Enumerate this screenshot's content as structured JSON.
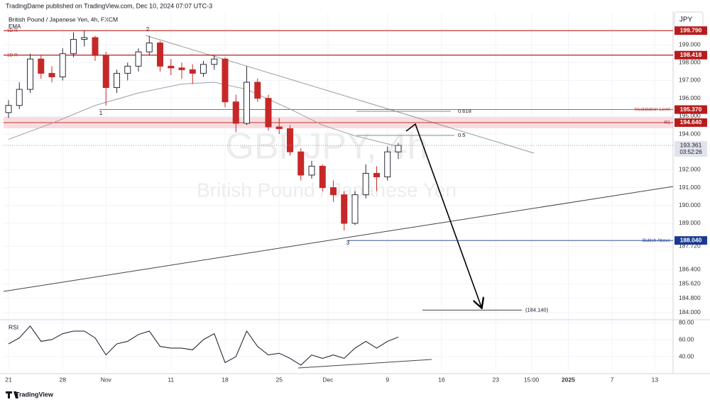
{
  "header": {
    "published": "TradingDame published on TradingView.com, Dec 10, 2024 07:07 UTC-3",
    "symbol": "British Pound / Japanese Yen, 4h, FXCM",
    "currency": "JPY",
    "footer": "TradingView"
  },
  "watermark": {
    "ticker": "GBPJPY, 4h",
    "name": "British Pound / Japanese Yen"
  },
  "annotations": {
    "pivots": [
      "1",
      "2",
      "3"
    ],
    "fib": [
      0.618,
      0.5
    ],
    "target": {
      "value": 184.14,
      "label": "(184.140)"
    }
  },
  "chart_data": [
    {
      "type": "candlestick",
      "up_color": "#2a2e39",
      "down_color": "#c62828",
      "grid": true,
      "x": [
        0,
        1,
        2,
        3,
        4,
        5,
        6,
        7,
        8,
        9,
        10,
        11,
        12,
        13,
        14,
        15,
        16,
        17,
        18,
        19,
        20,
        21,
        22,
        23,
        24,
        25,
        26,
        27,
        28,
        29,
        30,
        31,
        32,
        33,
        34,
        35,
        36
      ],
      "open": [
        195.2,
        195.6,
        196.5,
        198.2,
        197.4,
        197.2,
        198.5,
        199.3,
        199.4,
        198.4,
        196.6,
        197.4,
        197.8,
        198.6,
        199.1,
        197.8,
        197.7,
        197.6,
        197.4,
        197.9,
        198.2,
        195.8,
        194.6,
        196.9,
        196.0,
        194.4,
        194.3,
        193.0,
        191.7,
        192.2,
        191.0,
        190.6,
        189.0,
        190.6,
        191.8,
        191.6,
        193.0
      ],
      "high": [
        195.9,
        196.9,
        198.5,
        198.4,
        197.8,
        198.8,
        199.7,
        199.8,
        199.5,
        198.6,
        197.6,
        198.0,
        198.8,
        199.5,
        199.2,
        198.2,
        198.0,
        197.9,
        198.1,
        198.4,
        198.3,
        196.2,
        197.8,
        197.1,
        196.2,
        194.9,
        194.5,
        193.2,
        192.5,
        192.3,
        191.4,
        190.8,
        190.8,
        192.3,
        192.2,
        193.3,
        193.5
      ],
      "low": [
        194.9,
        195.4,
        196.3,
        197.1,
        196.9,
        197.0,
        198.3,
        198.9,
        198.1,
        195.6,
        196.3,
        197.0,
        197.5,
        198.4,
        197.5,
        197.3,
        197.1,
        196.8,
        197.2,
        197.6,
        195.5,
        194.1,
        194.5,
        195.8,
        194.2,
        194.0,
        192.8,
        191.4,
        191.5,
        190.8,
        190.2,
        188.6,
        188.9,
        190.4,
        190.8,
        191.4,
        192.6
      ],
      "close": [
        195.6,
        196.5,
        198.2,
        197.4,
        197.2,
        198.5,
        199.3,
        199.4,
        198.4,
        196.6,
        197.4,
        197.8,
        198.6,
        199.1,
        197.8,
        197.7,
        197.6,
        197.4,
        197.9,
        198.2,
        195.8,
        194.6,
        196.9,
        196.0,
        194.4,
        194.3,
        193.0,
        191.7,
        192.2,
        191.0,
        190.6,
        189.0,
        190.6,
        191.8,
        191.6,
        193.0,
        193.361
      ],
      "series": [
        {
          "name": "EMA",
          "color": "#9e9e9e",
          "x": [
            0,
            4,
            8,
            12,
            16,
            19,
            22,
            26,
            29,
            32,
            36
          ],
          "values": [
            193.7,
            194.6,
            195.6,
            196.3,
            196.8,
            196.9,
            196.5,
            195.4,
            194.5,
            193.9,
            193.3
          ]
        }
      ],
      "xlim": [
        -0.46,
        61.38
      ],
      "xticks": [
        {
          "value": 0,
          "label": "21"
        },
        {
          "value": 5,
          "label": "28"
        },
        {
          "value": 9,
          "label": "Nov"
        },
        {
          "value": 15,
          "label": "11"
        },
        {
          "value": 20,
          "label": "18"
        },
        {
          "value": 25,
          "label": "25"
        },
        {
          "value": 29.5,
          "label": "Dec"
        },
        {
          "value": 35,
          "label": "9"
        },
        {
          "value": 40,
          "label": "16"
        },
        {
          "value": 45,
          "label": "23"
        },
        {
          "value": 48.3,
          "label": "15:00"
        },
        {
          "value": 51.7,
          "label": "2025"
        },
        {
          "value": 55.75,
          "label": "7"
        },
        {
          "value": 59.7,
          "label": "13"
        }
      ],
      "ylim": [
        183.64,
        200.79
      ],
      "yticks": [
        {
          "value": 199,
          "label": "199.000"
        },
        {
          "value": 198,
          "label": "198.000"
        },
        {
          "value": 197,
          "label": "197.000"
        },
        {
          "value": 196,
          "label": "196.000"
        },
        {
          "value": 195,
          "label": "195.000"
        },
        {
          "value": 194,
          "label": "194.000"
        },
        {
          "value": 192,
          "label": "192.000"
        },
        {
          "value": 191,
          "label": "191.000"
        },
        {
          "value": 190,
          "label": "190.000"
        },
        {
          "value": 189,
          "label": "189.000"
        },
        {
          "value": 187.72,
          "label": "187.720"
        },
        {
          "value": 186.4,
          "label": "186.400"
        },
        {
          "value": 185.62,
          "label": "185.620"
        },
        {
          "value": 184.8,
          "label": "184.800"
        },
        {
          "value": 184,
          "label": "184.000"
        }
      ],
      "levels": [
        {
          "value": 199.79,
          "label": "199.790",
          "tag": "1D R",
          "color": "#b71c1c"
        },
        {
          "value": 198.418,
          "label": "198.418",
          "tag": "1D R",
          "color": "#b71c1c"
        },
        {
          "value": 195.37,
          "label": "195.370",
          "tag": "Invalidation Level",
          "color": "#b71c1c"
        },
        {
          "value": 194.64,
          "label": "194.640",
          "tag": "R1",
          "color": "#b71c1c"
        },
        {
          "value": 188.04,
          "label": "188.040",
          "tag": "Bullish Above",
          "color": "#1a3a8f"
        }
      ],
      "last": {
        "value": 193.361,
        "label": "193.361",
        "countdown": "03:52:26"
      }
    },
    {
      "type": "line",
      "title": "RSI",
      "color": "#131722",
      "x": [
        0,
        1,
        2,
        3,
        4,
        5,
        6,
        7,
        8,
        9,
        10,
        11,
        12,
        13,
        14,
        15,
        16,
        17,
        18,
        19,
        20,
        21,
        22,
        23,
        24,
        25,
        26,
        27,
        28,
        29,
        30,
        31,
        32,
        33,
        34,
        35,
        36
      ],
      "values": [
        55,
        62,
        76,
        58,
        60,
        67,
        70,
        70,
        62,
        42,
        55,
        58,
        66,
        70,
        52,
        50,
        50,
        48,
        60,
        67,
        33,
        40,
        70,
        52,
        42,
        44,
        38,
        30,
        42,
        38,
        42,
        38,
        50,
        58,
        50,
        58,
        63
      ],
      "ylim": [
        24.2,
        82.5
      ],
      "yticks": [
        {
          "value": 80,
          "label": "80.00"
        },
        {
          "value": 60,
          "label": "60.00"
        },
        {
          "value": 40,
          "label": "40.00"
        }
      ]
    }
  ]
}
